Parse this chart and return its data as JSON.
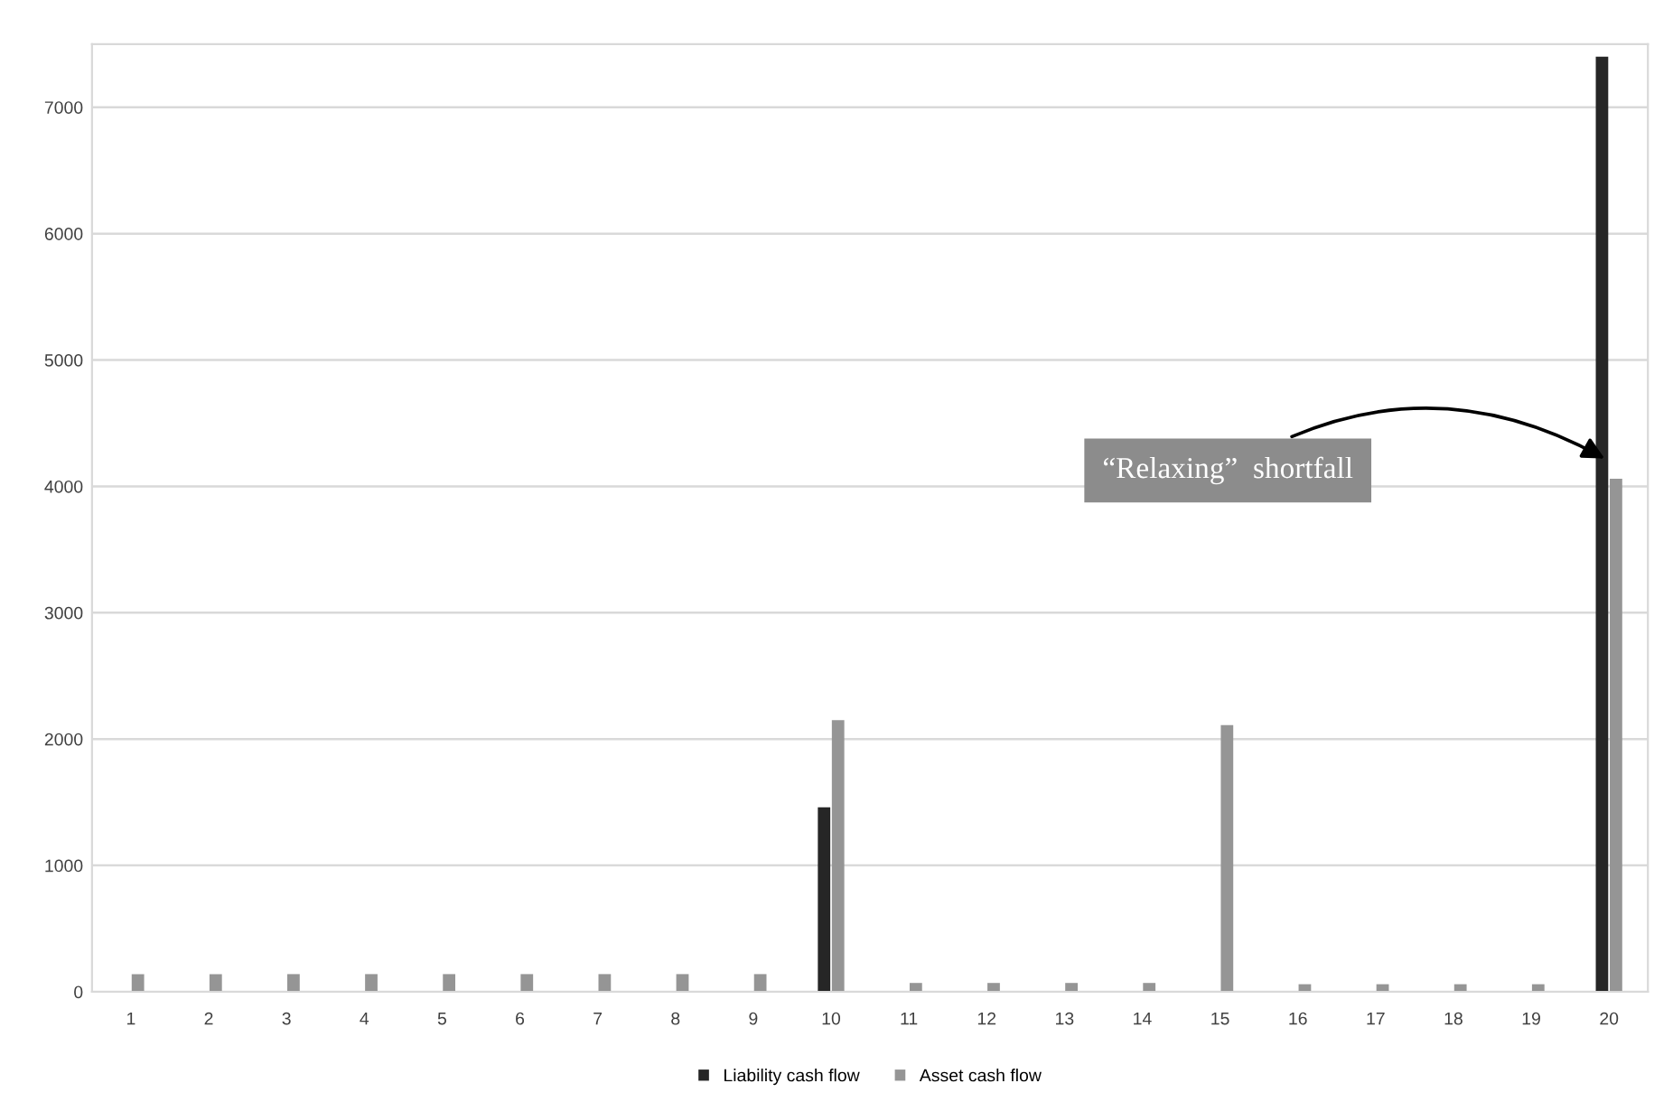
{
  "chart_data": {
    "type": "bar",
    "categories": [
      "1",
      "2",
      "3",
      "4",
      "5",
      "6",
      "7",
      "8",
      "9",
      "10",
      "11",
      "12",
      "13",
      "14",
      "15",
      "16",
      "17",
      "18",
      "19",
      "20"
    ],
    "series": [
      {
        "name": "Liability cash flow",
        "color": "#262626",
        "values": [
          0,
          0,
          0,
          0,
          0,
          0,
          0,
          0,
          0,
          1460,
          0,
          0,
          0,
          0,
          0,
          0,
          0,
          0,
          0,
          7400
        ]
      },
      {
        "name": "Asset cash flow",
        "color": "#959595",
        "values": [
          140,
          140,
          140,
          140,
          140,
          140,
          140,
          140,
          140,
          2150,
          70,
          70,
          70,
          70,
          2110,
          60,
          60,
          60,
          60,
          4060
        ]
      }
    ],
    "ylim": [
      0,
      7500
    ],
    "yticks": [
      0,
      1000,
      2000,
      3000,
      4000,
      5000,
      6000,
      7000
    ],
    "grid": "y",
    "legend": "bottom",
    "annotations": [
      {
        "text": "“Relaxing”  shortfall",
        "x": "20",
        "y": 4200
      }
    ]
  }
}
